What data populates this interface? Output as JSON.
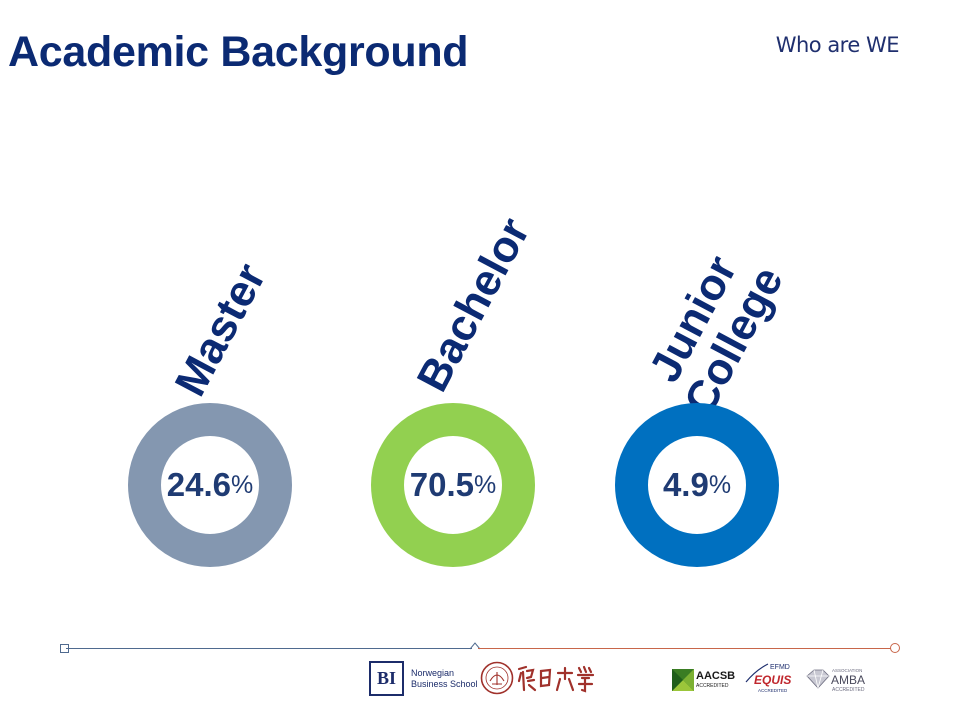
{
  "slide": {
    "title": "Academic Background",
    "section_label": "Who are WE"
  },
  "categories": [
    {
      "label": "Master",
      "value": "24.6",
      "unit": "%",
      "ring_color": "#8497b0"
    },
    {
      "label": "Bachelor",
      "value": "70.5",
      "unit": "%",
      "ring_color": "#92d050"
    },
    {
      "label_lines": [
        "Junior",
        "College"
      ],
      "value": "4.9",
      "unit": "%",
      "ring_color": "#0070c0"
    }
  ],
  "footer": {
    "bi_logo": {
      "mark": "BI",
      "name_line1": "Norwegian",
      "name_line2": "Business School"
    },
    "accreditations": {
      "aacsb": {
        "name": "AACSB",
        "sub": "ACCREDITED"
      },
      "equis": {
        "org": "EFMD",
        "name": "EQUIS",
        "sub": "ACCREDITED"
      },
      "amba": {
        "org": "ASSOCIATION",
        "name": "AMBA",
        "sub": "ACCREDITED"
      }
    },
    "icons": [
      "bi-logo-icon",
      "fudan-seal-icon",
      "fudan-calligraphy-icon",
      "aacsb-logo-icon",
      "equis-logo-icon",
      "amba-logo-icon"
    ]
  }
}
